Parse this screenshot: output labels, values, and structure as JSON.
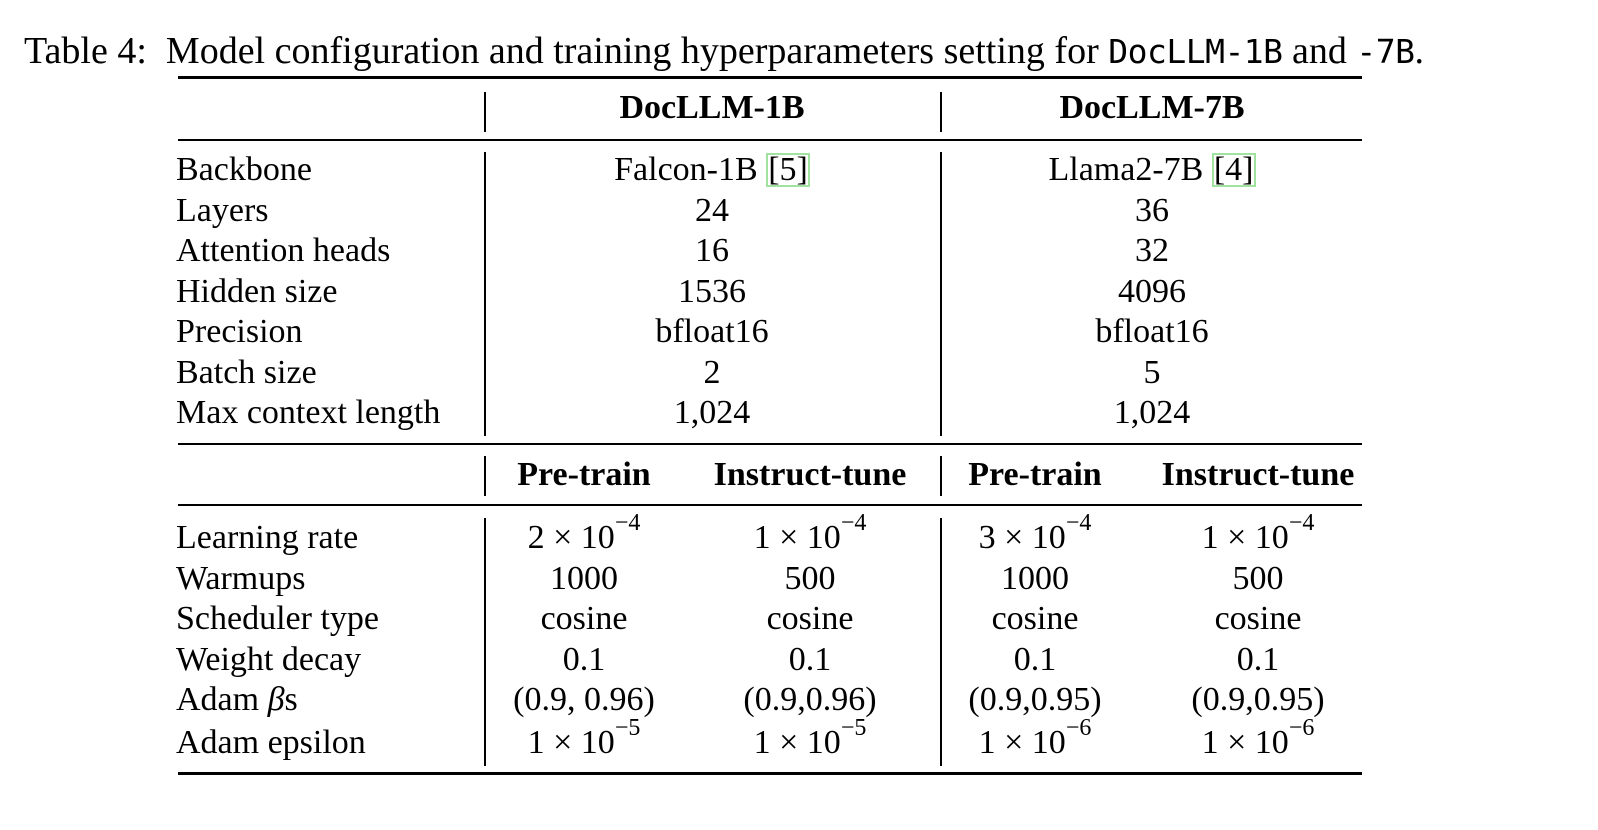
{
  "caption": {
    "prefix": "Table 4:",
    "text_1": "Model configuration and training hyperparameters setting for ",
    "model_1": "DocLLM-1B",
    "text_2": " and ",
    "model_2": "-7B",
    "text_3": "."
  },
  "header": {
    "col_1b": "DocLLM-1B",
    "col_7b": "DocLLM-7B"
  },
  "config_rows": [
    {
      "label": "Backbone",
      "v1b": "Falcon-1B ",
      "cite1b": "[5]",
      "v7b": "Llama2-7B ",
      "cite7b": "[4]"
    },
    {
      "label": "Layers",
      "v1b": "24",
      "v7b": "36"
    },
    {
      "label": "Attention heads",
      "v1b": "16",
      "v7b": "32"
    },
    {
      "label": "Hidden size",
      "v1b": "1536",
      "v7b": "4096"
    },
    {
      "label": "Precision",
      "v1b": "bfloat16",
      "v7b": "bfloat16"
    },
    {
      "label": "Batch size",
      "v1b": "2",
      "v7b": "5"
    },
    {
      "label": "Max context length",
      "v1b": "1,024",
      "v7b": "1,024"
    }
  ],
  "sub_header": {
    "pretrain_1b": "Pre-train",
    "instruct_1b": "Instruct-tune",
    "pretrain_7b": "Pre-train",
    "instruct_7b": "Instruct-tune"
  },
  "train_rows": [
    {
      "label": "Learning rate",
      "c1": {
        "base": "2 × 10",
        "exp": "−4"
      },
      "c2": {
        "base": "1 × 10",
        "exp": "−4"
      },
      "c3": {
        "base": "3 × 10",
        "exp": "−4"
      },
      "c4": {
        "base": "1 × 10",
        "exp": "−4"
      }
    },
    {
      "label": "Warmups",
      "c1": {
        "base": "1000"
      },
      "c2": {
        "base": "500"
      },
      "c3": {
        "base": "1000"
      },
      "c4": {
        "base": "500"
      }
    },
    {
      "label": "Scheduler type",
      "c1": {
        "base": "cosine"
      },
      "c2": {
        "base": "cosine"
      },
      "c3": {
        "base": "cosine"
      },
      "c4": {
        "base": "cosine"
      }
    },
    {
      "label": "Weight decay",
      "c1": {
        "base": "0.1"
      },
      "c2": {
        "base": "0.1"
      },
      "c3": {
        "base": "0.1"
      },
      "c4": {
        "base": "0.1"
      }
    },
    {
      "label_prefix": "Adam ",
      "label_symbol": "β",
      "label_suffix": "s",
      "c1": {
        "base": "(0.9, 0.96)"
      },
      "c2": {
        "base": "(0.9,0.96)"
      },
      "c3": {
        "base": "(0.9,0.95)"
      },
      "c4": {
        "base": "(0.9,0.95)"
      }
    },
    {
      "label": "Adam epsilon",
      "c1": {
        "base": "1 × 10",
        "exp": "−5"
      },
      "c2": {
        "base": "1 × 10",
        "exp": "−5"
      },
      "c3": {
        "base": "1 × 10",
        "exp": "−6"
      },
      "c4": {
        "base": "1 × 10",
        "exp": "−6"
      }
    }
  ]
}
